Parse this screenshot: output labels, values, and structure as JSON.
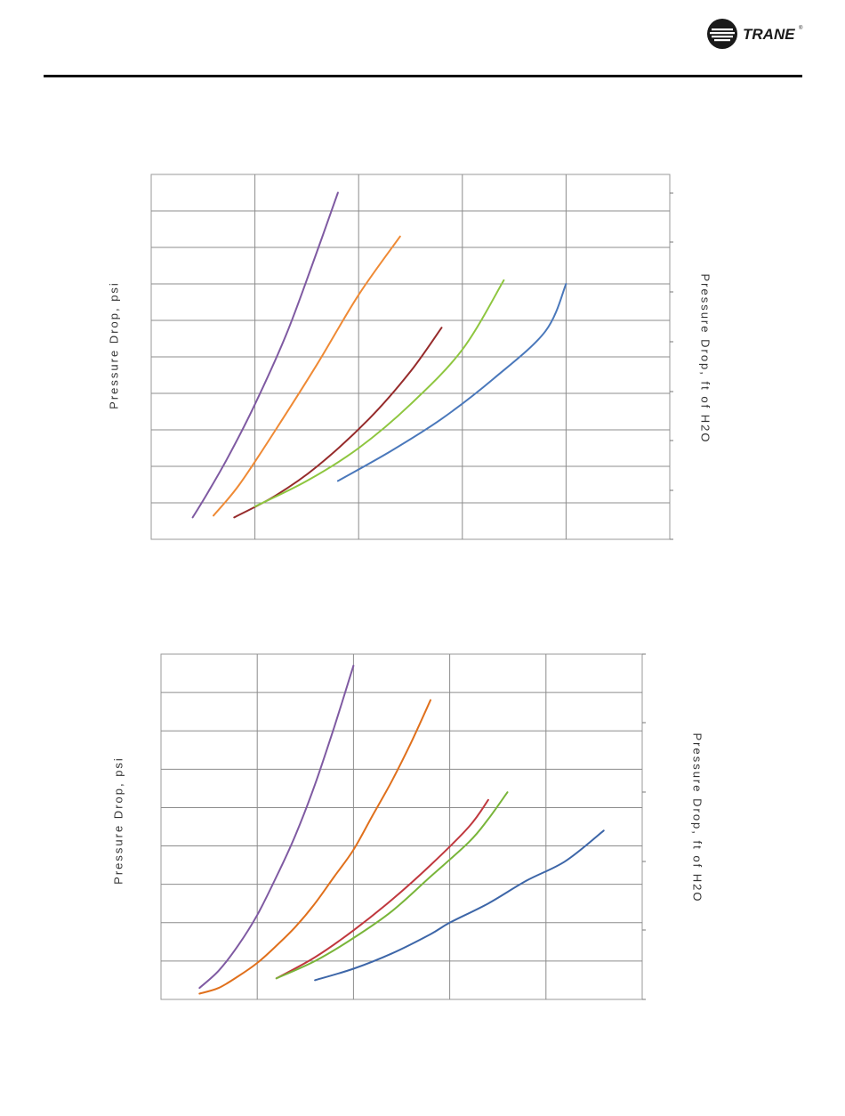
{
  "header": {
    "brand": "TRANE",
    "brand_mark": "®"
  },
  "colors": {
    "purple": "#7f5aa2",
    "orange": "#ef8a35",
    "darkred": "#962b2b",
    "green": "#8ec63f",
    "blue": "#4a78bb",
    "orange_bottom": "#e0701c",
    "red_bottom": "#c0383e",
    "green_bottom": "#79b53a",
    "blue_bottom": "#3d66a8",
    "grid": "#8c8c8c"
  },
  "chart_data": [
    {
      "type": "line",
      "ylabel": "Pressure Drop, psi",
      "y2label": "Pressure Drop, ft of H2O",
      "grid": true,
      "xlim": [
        0,
        5
      ],
      "ylim": [
        0,
        10
      ],
      "y2lim": [
        0,
        23.1
      ],
      "series": [
        {
          "color": "purple",
          "x": [
            0.4,
            0.55,
            0.75,
            1.0,
            1.3,
            1.55,
            1.8
          ],
          "y": [
            0.6,
            1.3,
            2.3,
            3.7,
            5.6,
            7.5,
            9.5
          ]
        },
        {
          "color": "orange",
          "x": [
            0.6,
            0.85,
            1.2,
            1.6,
            2.0,
            2.4
          ],
          "y": [
            0.65,
            1.5,
            3.0,
            4.8,
            6.7,
            8.3
          ]
        },
        {
          "color": "darkred",
          "x": [
            0.8,
            1.2,
            1.6,
            2.1,
            2.5,
            2.8
          ],
          "y": [
            0.6,
            1.2,
            2.0,
            3.3,
            4.6,
            5.8
          ]
        },
        {
          "color": "green",
          "x": [
            1.0,
            1.5,
            2.0,
            2.5,
            3.0,
            3.4
          ],
          "y": [
            0.9,
            1.6,
            2.5,
            3.7,
            5.2,
            7.1
          ]
        },
        {
          "color": "blue",
          "x": [
            1.8,
            2.3,
            2.8,
            3.3,
            3.8,
            4.0
          ],
          "y": [
            1.6,
            2.4,
            3.3,
            4.4,
            5.7,
            7.0
          ]
        }
      ]
    },
    {
      "type": "line",
      "ylabel": "Pressure Drop, psi",
      "y2label": "Pressure Drop, ft of H2O",
      "grid": true,
      "xlim": [
        0,
        5
      ],
      "ylim": [
        0,
        9
      ],
      "y2lim": [
        0,
        20.8
      ],
      "series": [
        {
          "color": "purple",
          "x": [
            0.4,
            0.6,
            0.8,
            1.0,
            1.2,
            1.4,
            1.6,
            1.8,
            2.0
          ],
          "y": [
            0.3,
            0.75,
            1.4,
            2.2,
            3.2,
            4.3,
            5.6,
            7.1,
            8.7
          ]
        },
        {
          "color": "orange_bottom",
          "x": [
            0.4,
            0.6,
            0.8,
            1.0,
            1.2,
            1.4,
            1.6,
            1.8,
            2.0,
            2.2,
            2.4,
            2.6,
            2.8
          ],
          "y": [
            0.15,
            0.3,
            0.6,
            0.95,
            1.4,
            1.9,
            2.5,
            3.2,
            3.9,
            4.8,
            5.7,
            6.7,
            7.8
          ]
        },
        {
          "color": "red_bottom",
          "x": [
            1.2,
            1.6,
            2.0,
            2.4,
            2.8,
            3.2,
            3.4
          ],
          "y": [
            0.55,
            1.1,
            1.8,
            2.6,
            3.5,
            4.5,
            5.2
          ]
        },
        {
          "color": "green_bottom",
          "x": [
            1.2,
            1.6,
            2.0,
            2.4,
            2.8,
            3.2,
            3.4,
            3.6
          ],
          "y": [
            0.55,
            1.0,
            1.6,
            2.3,
            3.2,
            4.1,
            4.7,
            5.4
          ]
        },
        {
          "color": "blue_bottom",
          "x": [
            1.6,
            2.0,
            2.4,
            2.8,
            3.0,
            3.4,
            3.8,
            4.2,
            4.6
          ],
          "y": [
            0.5,
            0.8,
            1.2,
            1.7,
            2.0,
            2.5,
            3.1,
            3.6,
            4.4
          ]
        }
      ]
    }
  ]
}
